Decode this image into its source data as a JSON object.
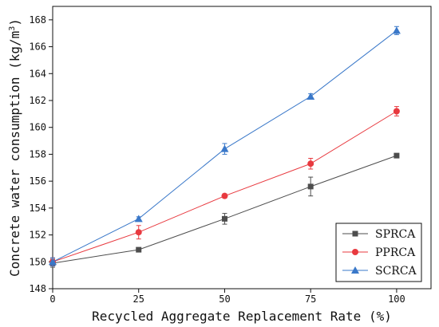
{
  "chart_data": {
    "type": "line",
    "xlabel": "Recycled Aggregate Replacement Rate (%)",
    "ylabel_main": "Concrete water consumption (kg/m",
    "ylabel_sup": "3",
    "ylabel_end": ")",
    "x": [
      0,
      25,
      50,
      75,
      100
    ],
    "xlim": [
      0,
      110
    ],
    "ylim": [
      148,
      169
    ],
    "x_ticks": [
      0,
      25,
      50,
      75,
      100
    ],
    "y_ticks": [
      148,
      150,
      152,
      154,
      156,
      158,
      160,
      162,
      164,
      166,
      168
    ],
    "legend_position": "bottom-right",
    "grid": false,
    "series": [
      {
        "name": "SPRCA",
        "color": "#4d4d4d",
        "marker": "square",
        "values": [
          149.9,
          150.9,
          153.2,
          155.6,
          157.9
        ],
        "errors": [
          0.3,
          0.15,
          0.4,
          0.7,
          0.15
        ]
      },
      {
        "name": "PPRCA",
        "color": "#e8393f",
        "marker": "circle",
        "values": [
          150.0,
          152.2,
          154.9,
          157.3,
          161.2
        ],
        "errors": [
          0.3,
          0.5,
          0.15,
          0.4,
          0.35
        ]
      },
      {
        "name": "SCRCA",
        "color": "#3a78c9",
        "marker": "triangle",
        "values": [
          150.0,
          153.2,
          158.4,
          162.3,
          167.2
        ],
        "errors": [
          0.3,
          0.15,
          0.4,
          0.2,
          0.3
        ]
      }
    ]
  }
}
